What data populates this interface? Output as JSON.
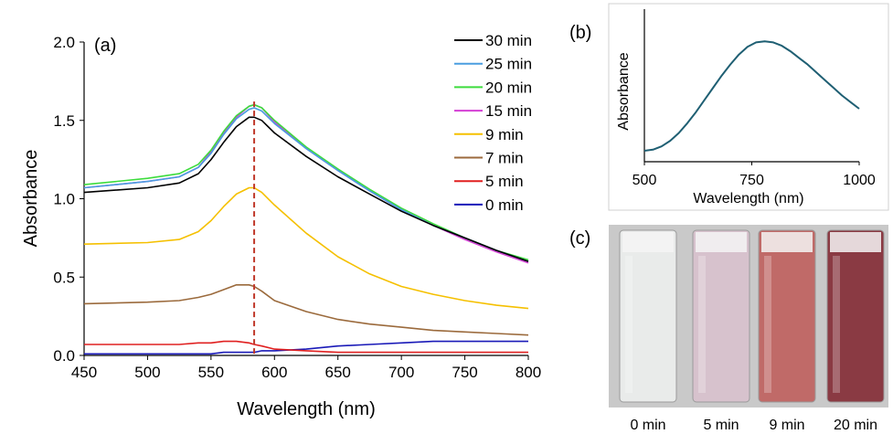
{
  "chart_data": [
    {
      "panel_label": "(a)",
      "type": "line",
      "xlabel": "Wavelength (nm)",
      "ylabel": "Absorbance",
      "xlim": [
        450,
        800
      ],
      "ylim": [
        0,
        2
      ],
      "xticks": [
        "450",
        "500",
        "550",
        "600",
        "650",
        "700",
        "750",
        "800"
      ],
      "yticks": [
        "0.0",
        "0.5",
        "1.0",
        "1.5",
        "2.0"
      ],
      "legend_position": "top-right",
      "annotation": {
        "type": "dashed-vertical-line",
        "x": 584,
        "color": "#c0392b"
      },
      "x": [
        450,
        500,
        525,
        540,
        550,
        560,
        570,
        580,
        584,
        590,
        600,
        625,
        650,
        675,
        700,
        725,
        750,
        775,
        800
      ],
      "series": [
        {
          "name": "30 min",
          "color": "#000000",
          "values": [
            1.04,
            1.07,
            1.1,
            1.16,
            1.25,
            1.36,
            1.46,
            1.52,
            1.52,
            1.5,
            1.42,
            1.27,
            1.14,
            1.03,
            0.92,
            0.83,
            0.75,
            0.67,
            0.6
          ]
        },
        {
          "name": "25 min",
          "color": "#4a9de0",
          "values": [
            1.07,
            1.11,
            1.14,
            1.2,
            1.29,
            1.41,
            1.51,
            1.57,
            1.58,
            1.56,
            1.48,
            1.32,
            1.18,
            1.05,
            0.93,
            0.83,
            0.75,
            0.67,
            0.6
          ]
        },
        {
          "name": "20 min",
          "color": "#3ddc3d",
          "values": [
            1.09,
            1.13,
            1.16,
            1.22,
            1.31,
            1.43,
            1.53,
            1.59,
            1.6,
            1.58,
            1.5,
            1.33,
            1.19,
            1.06,
            0.94,
            0.84,
            0.75,
            0.67,
            0.61
          ]
        },
        {
          "name": "15 min",
          "color": "#d43fd4",
          "values": [
            1.07,
            1.11,
            1.14,
            1.2,
            1.3,
            1.42,
            1.52,
            1.59,
            1.6,
            1.58,
            1.49,
            1.32,
            1.18,
            1.05,
            0.93,
            0.83,
            0.74,
            0.66,
            0.59
          ]
        },
        {
          "name": "9 min",
          "color": "#f5c000",
          "values": [
            0.71,
            0.72,
            0.74,
            0.79,
            0.86,
            0.95,
            1.03,
            1.07,
            1.07,
            1.04,
            0.96,
            0.78,
            0.63,
            0.52,
            0.44,
            0.39,
            0.35,
            0.32,
            0.3
          ]
        },
        {
          "name": "7 min",
          "color": "#9b6a3c",
          "values": [
            0.33,
            0.34,
            0.35,
            0.37,
            0.39,
            0.42,
            0.45,
            0.45,
            0.44,
            0.41,
            0.35,
            0.28,
            0.23,
            0.2,
            0.18,
            0.16,
            0.15,
            0.14,
            0.13
          ]
        },
        {
          "name": "5 min",
          "color": "#e02020",
          "values": [
            0.07,
            0.07,
            0.07,
            0.08,
            0.08,
            0.09,
            0.09,
            0.08,
            0.07,
            0.06,
            0.04,
            0.03,
            0.02,
            0.02,
            0.02,
            0.02,
            0.02,
            0.02,
            0.02
          ]
        },
        {
          "name": "0 min",
          "color": "#1a1ab8",
          "values": [
            0.01,
            0.01,
            0.01,
            0.01,
            0.01,
            0.02,
            0.02,
            0.02,
            0.02,
            0.03,
            0.03,
            0.04,
            0.06,
            0.07,
            0.08,
            0.09,
            0.09,
            0.09,
            0.09
          ]
        }
      ]
    },
    {
      "panel_label": "(b)",
      "type": "line",
      "xlabel": "Wavelength (nm)",
      "ylabel": "Absorbance",
      "xlim": [
        500,
        1000
      ],
      "xticks": [
        "500",
        "750",
        "1000"
      ],
      "x": [
        500,
        520,
        540,
        560,
        580,
        600,
        620,
        640,
        660,
        680,
        700,
        720,
        740,
        760,
        780,
        800,
        820,
        840,
        860,
        880,
        900,
        920,
        940,
        960,
        980,
        1000
      ],
      "series": [
        {
          "color": "#1f5f73",
          "values": [
            0.0,
            0.01,
            0.04,
            0.09,
            0.16,
            0.25,
            0.35,
            0.46,
            0.57,
            0.68,
            0.78,
            0.87,
            0.94,
            0.98,
            0.99,
            0.98,
            0.95,
            0.9,
            0.84,
            0.78,
            0.71,
            0.64,
            0.57,
            0.5,
            0.44,
            0.38
          ]
        }
      ]
    }
  ],
  "photos": {
    "panel_label": "(c)",
    "items": [
      {
        "caption": "0 min",
        "color": "#e9ebea"
      },
      {
        "caption": "5 min",
        "color": "#d7c2cd"
      },
      {
        "caption": "9 min",
        "color": "#c06a68"
      },
      {
        "caption": "20 min",
        "color": "#8a3a43"
      }
    ]
  }
}
